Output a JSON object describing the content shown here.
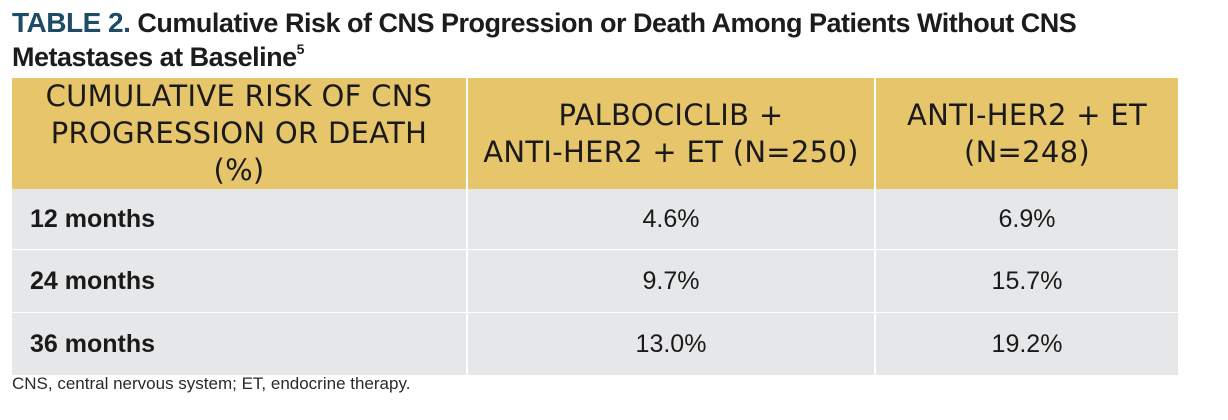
{
  "title": {
    "label": "TABLE 2.",
    "text": "Cumulative Risk of CNS Progression or Death Among Patients Without CNS Metastases at Baseline",
    "superscript": "5"
  },
  "table": {
    "headers": [
      [
        "CUMULATIVE RISK OF CNS",
        "PROGRESSION OR DEATH (%)"
      ],
      [
        "PALBOCICLIB +",
        "ANTI-HER2 + ET (N=250)"
      ],
      [
        "ANTI-HER2 + ET",
        "(N=248)"
      ]
    ],
    "rows": [
      {
        "label": "12 months",
        "palbociclib": "4.6%",
        "control": "6.9%"
      },
      {
        "label": "24 months",
        "palbociclib": "9.7%",
        "control": "15.7%"
      },
      {
        "label": "36 months",
        "palbociclib": "13.0%",
        "control": "19.2%"
      }
    ]
  },
  "footnote": "CNS, central nervous system; ET, endocrine therapy.",
  "colors": {
    "title_label": "#1e4b66",
    "header_bg": "#e7c56b",
    "row_bg": "#e6e7e9"
  }
}
